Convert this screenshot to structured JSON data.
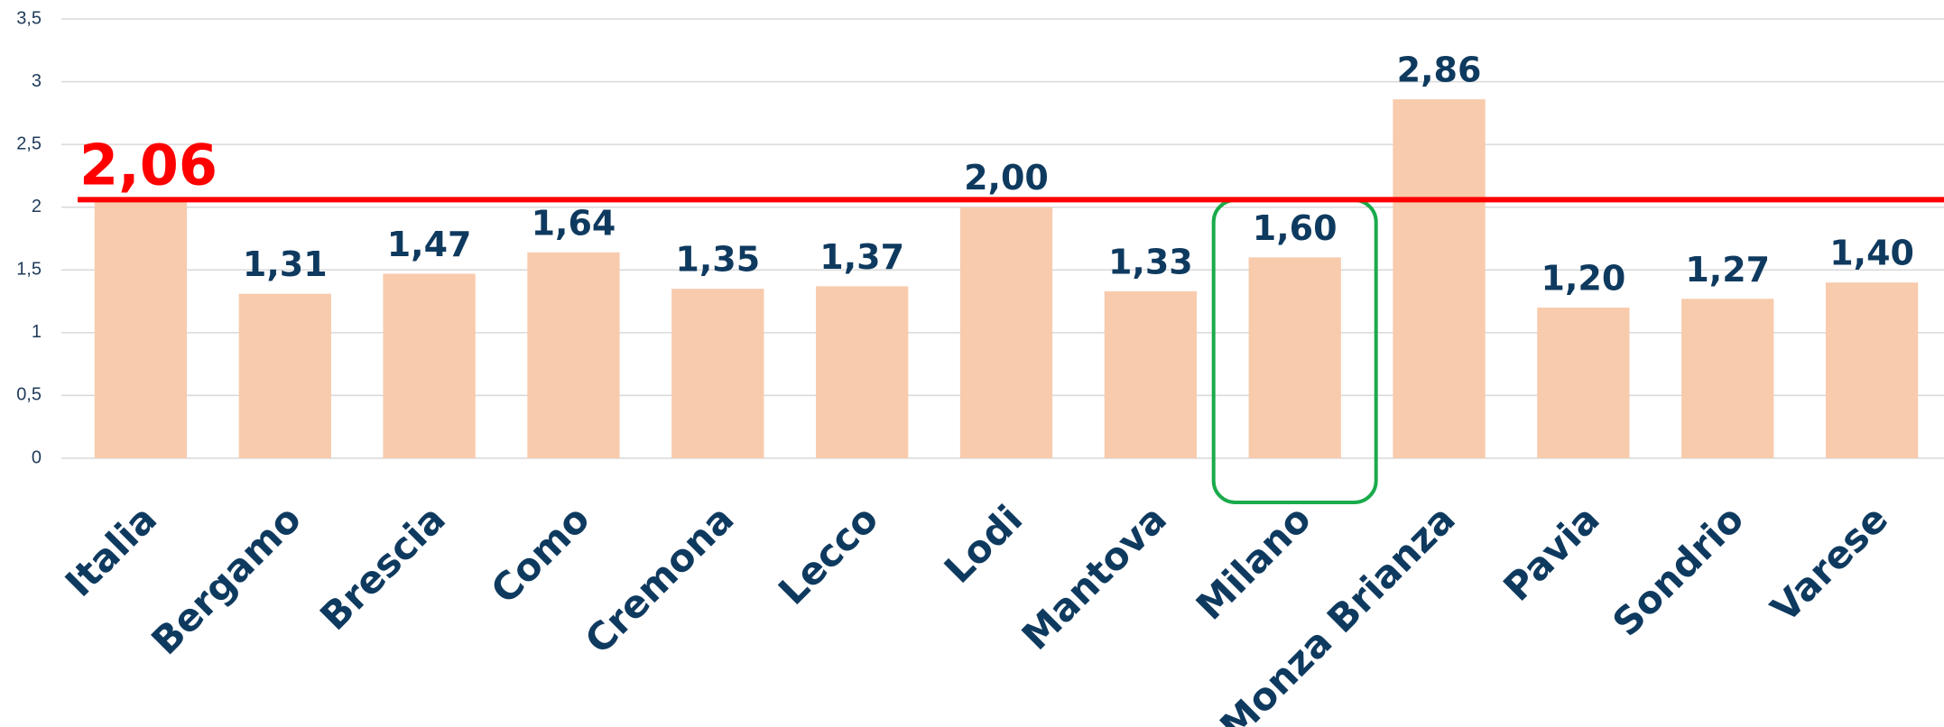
{
  "chart_data": {
    "type": "bar",
    "categories": [
      "Italia",
      "Bergamo",
      "Brescia",
      "Como",
      "Cremona",
      "Lecco",
      "Lodi",
      "Mantova",
      "Milano",
      "Monza Brianza",
      "Pavia",
      "Sondrio",
      "Varese"
    ],
    "values": [
      2.06,
      1.31,
      1.47,
      1.64,
      1.35,
      1.37,
      2.0,
      1.33,
      1.6,
      2.86,
      1.2,
      1.27,
      1.4
    ],
    "value_labels": [
      null,
      "1,31",
      "1,47",
      "1,64",
      "1,35",
      "1,37",
      "2,00",
      "1,33",
      "1,60",
      "2,86",
      "1,20",
      "1,27",
      "1,40"
    ],
    "color": "#f8cbad",
    "ylim": [
      0,
      3.5
    ],
    "yticks": [
      0,
      {
        "value": 0.5,
        "label": "0,5"
      },
      1,
      {
        "value": 1.5,
        "label": "1,5"
      },
      2,
      {
        "value": 2.5,
        "label": "2,5"
      },
      3,
      {
        "value": 3.5,
        "label": "3,5"
      }
    ],
    "grid": true,
    "reference_line": {
      "value": 2.06,
      "label": "2,06",
      "color": "#ff0000"
    },
    "highlight": {
      "index": 8,
      "color": "#1aab4b"
    }
  }
}
